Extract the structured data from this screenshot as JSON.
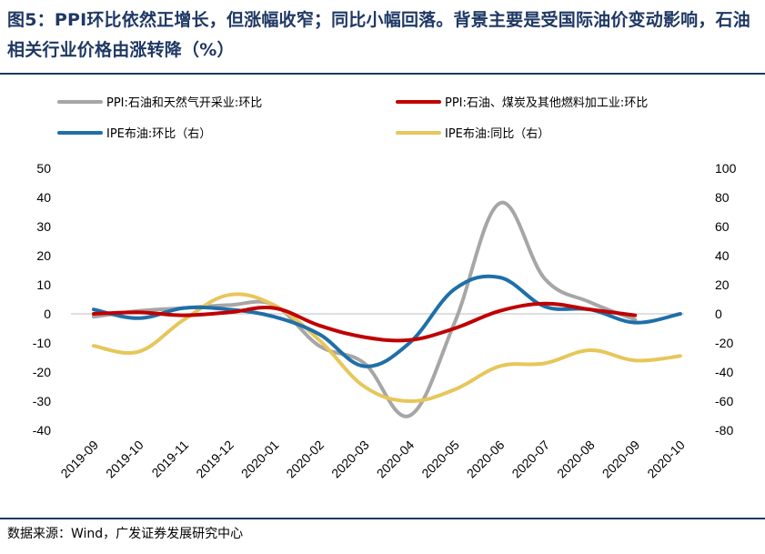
{
  "title": "图5：PPI环比依然正增长，但涨幅收窄；同比小幅回落。背景主要是受国际油价变动影响，石油相关行业价格由涨转降（%）",
  "source": "数据来源：Wind，广发证券发展研究中心",
  "colors": {
    "title": "#1f3864",
    "series": [
      "#a6a6a6",
      "#c00000",
      "#1f6fa8",
      "#e7c65a"
    ]
  },
  "chart_data": {
    "type": "line",
    "categories": [
      "2019-09",
      "2019-10",
      "2019-11",
      "2019-12",
      "2020-01",
      "2020-02",
      "2020-03",
      "2020-04",
      "2020-05",
      "2020-06",
      "2020-07",
      "2020-08",
      "2020-09",
      "2020-10"
    ],
    "left_axis": {
      "ylim": [
        -40,
        50
      ],
      "ticks": [
        "50",
        "40",
        "30",
        "20",
        "10",
        "0",
        "-10",
        "-20",
        "-30",
        "-40"
      ]
    },
    "right_axis": {
      "ylim": [
        -80,
        100
      ],
      "ticks": [
        "100",
        "80",
        "60",
        "40",
        "20",
        "0",
        "-20",
        "-40",
        "-60",
        "-80"
      ]
    },
    "series": [
      {
        "name": "PPI:石油和天然气开采业:环比",
        "axis": "left",
        "color": "#a6a6a6",
        "values": [
          -1,
          1,
          2,
          3,
          3,
          -11,
          -17,
          -35,
          -3,
          38,
          12,
          4,
          -2,
          null
        ]
      },
      {
        "name": "PPI:石油、煤炭及其他燃料加工业:环比",
        "axis": "left",
        "color": "#c00000",
        "values": [
          0,
          0.5,
          -0.5,
          0.5,
          2,
          -4,
          -8,
          -9,
          -5,
          1,
          3.5,
          1.5,
          -0.5,
          null
        ]
      },
      {
        "name": "IPE布油:环比（右）",
        "axis": "right",
        "color": "#1f6fa8",
        "values": [
          3,
          -3,
          4,
          3,
          -2,
          -14,
          -36,
          -20,
          17,
          25,
          5,
          3,
          -6,
          0
        ]
      },
      {
        "name": "IPE布油:同比（右）",
        "axis": "right",
        "color": "#e7c65a",
        "values": [
          -22,
          -26,
          -4,
          13,
          6,
          -18,
          -50,
          -60,
          -52,
          -36,
          -34,
          -25,
          -32,
          -29
        ]
      }
    ]
  }
}
